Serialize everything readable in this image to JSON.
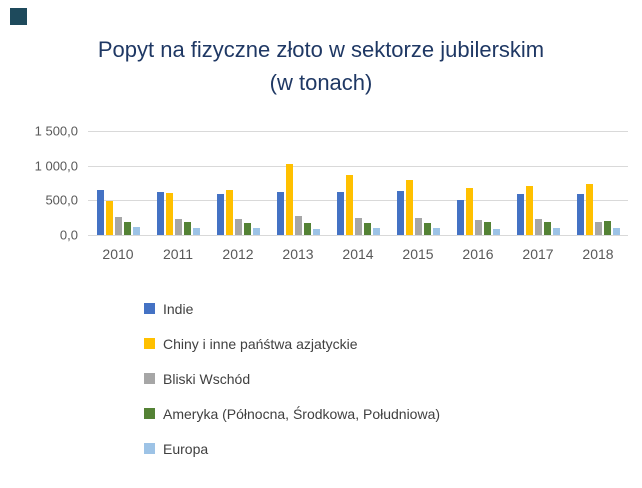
{
  "decor": {
    "corner_square_color": "#1E4A5C"
  },
  "chart_data": {
    "type": "bar",
    "title": "Popyt na fizyczne złoto w sektorze jubilerskim (w tonach)",
    "title_color": "#1F3864",
    "categories": [
      "2010",
      "2011",
      "2012",
      "2013",
      "2014",
      "2015",
      "2016",
      "2017",
      "2018"
    ],
    "series": [
      {
        "key": "indie",
        "name": "Indie",
        "color": "#4472C4",
        "values": [
          650,
          620,
          595,
          615,
          620,
          640,
          500,
          590,
          590
        ]
      },
      {
        "key": "chiny-i-inne-panstwa-azjatyckie",
        "name": "Chiny i inne pańśtwa azjatyckie",
        "color": "#FFC000",
        "values": [
          490,
          600,
          645,
          1020,
          860,
          800,
          680,
          700,
          730
        ]
      },
      {
        "key": "bliski-wschod",
        "name": "Bliski Wschód",
        "color": "#A6A6A6",
        "values": [
          255,
          230,
          230,
          280,
          250,
          245,
          215,
          230,
          185
        ]
      },
      {
        "key": "ameryka",
        "name": "Ameryka (Północna, Środkowa, Południowa)",
        "color": "#548235",
        "values": [
          190,
          190,
          180,
          170,
          180,
          180,
          185,
          185,
          200
        ]
      },
      {
        "key": "europa",
        "name": "Europa",
        "color": "#9DC3E6",
        "values": [
          110,
          105,
          95,
          85,
          95,
          100,
          90,
          100,
          95
        ]
      }
    ],
    "ylim": [
      0,
      1500
    ],
    "ytick_interval": 500,
    "ytick_labels_top_down": [
      "1 500,0",
      "1 000,0",
      "500,0",
      "0,0"
    ],
    "grid": true,
    "gridline_color": "#D9D9D9",
    "legend_position": "bottom-left",
    "axis_text_color": "#595959",
    "legend_text_color": "#404040"
  }
}
